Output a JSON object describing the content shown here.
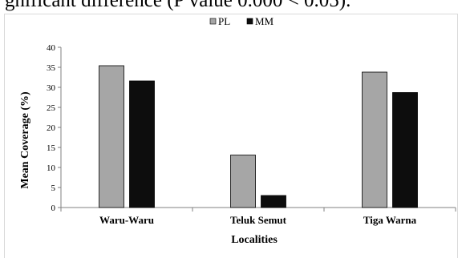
{
  "page_text": "gnificant difference (P value 0.000 < 0.05).",
  "colors": {
    "PL": "#a6a6a6",
    "MM": "#0d0d0d",
    "axis": "#808080"
  },
  "chart_data": {
    "type": "bar",
    "title": "",
    "xlabel": "Localities",
    "ylabel": "Mean Coverage (%)",
    "ylim": [
      0,
      40
    ],
    "yticks": [
      0,
      5,
      10,
      15,
      20,
      25,
      30,
      35,
      40
    ],
    "categories": [
      "Waru-Waru",
      "Teluk Semut",
      "Tiga Warna"
    ],
    "series": [
      {
        "name": "PL",
        "values": [
          35.4,
          13.1,
          33.8
        ]
      },
      {
        "name": "MM",
        "values": [
          31.6,
          3.0,
          28.7
        ]
      }
    ],
    "legend": "top-center",
    "grid": false
  }
}
